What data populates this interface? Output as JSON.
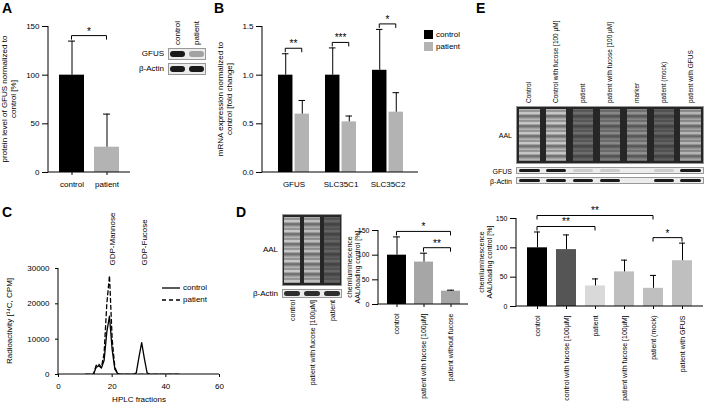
{
  "chart_data": [
    {
      "title": "A",
      "type": "bar",
      "categories": [
        "control",
        "patient"
      ],
      "values": [
        100,
        26
      ],
      "errors": [
        35,
        34
      ],
      "colors": [
        "#000000",
        "#b3b3b3"
      ],
      "ylabel": "protein level of GFUS normalized to control [%]",
      "ylim": [
        0,
        150
      ],
      "yticks": [
        0,
        50,
        100,
        150
      ],
      "significance": [
        {
          "from": "control",
          "to": "patient",
          "label": "*"
        }
      ],
      "blot": {
        "lanes": [
          "control",
          "patient"
        ],
        "rows": [
          "GFUS",
          "β-Actin"
        ]
      }
    },
    {
      "title": "B",
      "type": "bar",
      "categories": [
        "GFUS",
        "SLC35C1",
        "SLC35C2"
      ],
      "series": [
        {
          "name": "control",
          "color": "#000000",
          "values": [
            1.0,
            1.0,
            1.05
          ],
          "errors": [
            0.22,
            0.28,
            0.42
          ]
        },
        {
          "name": "patient",
          "color": "#b3b3b3",
          "values": [
            0.6,
            0.52,
            0.62
          ],
          "errors": [
            0.14,
            0.06,
            0.2
          ]
        }
      ],
      "ylabel": "mRNA expression normalized to control [fold change]",
      "ylim": [
        0,
        1.5
      ],
      "yticks": [
        {
          "value": 0,
          "label": "0.0"
        },
        0.5,
        {
          "value": 1,
          "label": "1.0"
        },
        1.5
      ],
      "legend": "top-right",
      "significance": [
        {
          "category": "GFUS",
          "label": "**"
        },
        {
          "category": "SLC35C1",
          "label": "***"
        },
        {
          "category": "SLC35C2",
          "label": "*"
        }
      ]
    },
    {
      "title": "C",
      "type": "line",
      "x": [
        10,
        13,
        14,
        15,
        16,
        17,
        18,
        19,
        20,
        21,
        22,
        23,
        28,
        29,
        30,
        31,
        32,
        33,
        34,
        45
      ],
      "series": [
        {
          "name": "control",
          "color": "#000000",
          "line_style": "solid",
          "values": [
            0,
            0,
            2000,
            2500,
            1800,
            4000,
            12000,
            16500,
            7000,
            1500,
            300,
            0,
            0,
            500,
            5000,
            9000,
            4500,
            500,
            0,
            0
          ]
        },
        {
          "name": "patient",
          "color": "#000000",
          "line_style": "dashed",
          "values": [
            0,
            0,
            2500,
            3000,
            2000,
            6000,
            20000,
            28000,
            10000,
            2000,
            300,
            0,
            0,
            0,
            0,
            0,
            0,
            0,
            0,
            0
          ]
        }
      ],
      "xlabel": "HPLC fractions",
      "ylabel": "Radioactivity [¹⁴C, CPM]",
      "xlim": [
        0,
        60
      ],
      "xticks": [
        0,
        20,
        40,
        60
      ],
      "ylim": [
        0,
        30000
      ],
      "yticks": [
        0,
        10000,
        20000,
        30000
      ],
      "legend": "right",
      "annotations": [
        {
          "text": "GDP-Mannose",
          "x": 19
        },
        {
          "text": "GDP-Fucose",
          "x": 31
        }
      ]
    },
    {
      "title": "D",
      "type": "bar",
      "categories": [
        "control",
        "patient with fucose [100µM]",
        "patient without fucose"
      ],
      "values": [
        100,
        86,
        27
      ],
      "errors": [
        37,
        18,
        2
      ],
      "colors": [
        "#000000",
        "#a6a6a6",
        "#a6a6a6"
      ],
      "ylabel": "chemiluminescence AAL/loading control [%]",
      "ylim": [
        0,
        150
      ],
      "yticks": [
        0,
        50,
        100,
        150
      ],
      "significance": [
        {
          "from": "patient with fucose [100µM]",
          "to": "patient without fucose",
          "label": "**"
        },
        {
          "from": "control",
          "to": "patient without fucose",
          "label": "*"
        }
      ],
      "blot": {
        "lanes": [
          "control",
          "patient with fucose [100µM]",
          "patient"
        ],
        "rows": [
          "AAL",
          "β-Actin"
        ]
      }
    },
    {
      "title": "E",
      "type": "bar",
      "categories": [
        "control",
        "control with fucose [100µM]",
        "patient",
        "patient with fucose [100µM]",
        "patient (mock)",
        "patient with GFUS"
      ],
      "values": [
        100,
        97,
        35,
        59,
        31,
        78
      ],
      "errors": [
        27,
        25,
        12,
        20,
        22,
        30
      ],
      "colors": [
        "#000000",
        "#555555",
        "#d9d9d9",
        "#bfbfbf",
        "#bfbfbf",
        "#bfbfbf"
      ],
      "ylabel": "chemiluminescence AAL/loading control [%]",
      "ylim": [
        0,
        150
      ],
      "yticks": [
        0,
        50,
        100,
        150
      ],
      "significance": [
        {
          "from": "patient (mock)",
          "to": "patient with GFUS",
          "label": "*"
        },
        {
          "from": "control",
          "to": "patient",
          "label": "**"
        },
        {
          "from": "control",
          "to": "patient (mock)",
          "label": "**"
        }
      ],
      "blot": {
        "lanes": [
          "Control",
          "Control with fucose [100 µM]",
          "patient",
          "patient with fucose [100 µM]",
          "marker",
          "patient (mock)",
          "patient with GFUS"
        ],
        "rows": [
          "AAL",
          "GFUS",
          "β-Actin"
        ]
      }
    }
  ]
}
